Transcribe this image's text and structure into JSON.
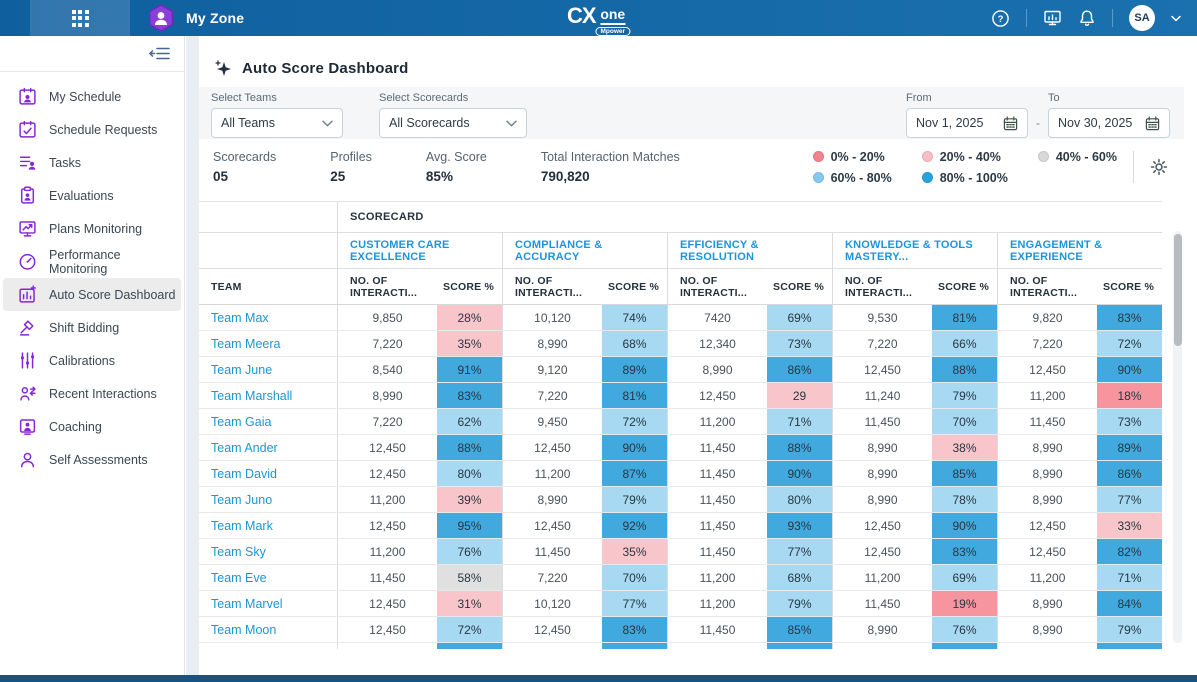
{
  "topbar": {
    "app_title": "My Zone",
    "logo_cx": "CX",
    "logo_one": "one",
    "logo_badge": "Mpower",
    "avatar_initials": "SA"
  },
  "sidebar": {
    "items": [
      {
        "label": "My Schedule",
        "icon": "calendar-user-icon",
        "active": false
      },
      {
        "label": "Schedule Requests",
        "icon": "calendar-check-icon",
        "active": false
      },
      {
        "label": "Tasks",
        "icon": "task-list-icon",
        "active": false
      },
      {
        "label": "Evaluations",
        "icon": "clipboard-user-icon",
        "active": false
      },
      {
        "label": "Plans Monitoring",
        "icon": "monitor-chart-icon",
        "active": false
      },
      {
        "label": "Performance Monitoring",
        "icon": "gauge-icon",
        "active": false
      },
      {
        "label": "Auto Score Dashboard",
        "icon": "dashboard-chart-icon",
        "active": true
      },
      {
        "label": "Shift Bidding",
        "icon": "gavel-icon",
        "active": false
      },
      {
        "label": "Calibrations",
        "icon": "sliders-icon",
        "active": false
      },
      {
        "label": "Recent Interactions",
        "icon": "user-arrows-icon",
        "active": false
      },
      {
        "label": "Coaching",
        "icon": "user-monitor-icon",
        "active": false
      },
      {
        "label": "Self Assessments",
        "icon": "user-icon",
        "active": false
      }
    ]
  },
  "page": {
    "title": "Auto Score Dashboard",
    "filters": {
      "teams_label": "Select Teams",
      "teams_value": "All Teams",
      "scorecards_label": "Select Scorecards",
      "scorecards_value": "All Scorecards",
      "from_label": "From",
      "from_value": "Nov 1, 2025",
      "to_label": "To",
      "to_value": "Nov 30, 2025",
      "range_separator": "-"
    },
    "stats": [
      {
        "label": "Scorecards",
        "value": "05"
      },
      {
        "label": "Profiles",
        "value": "25"
      },
      {
        "label": "Avg. Score",
        "value": "85%"
      },
      {
        "label": "Total Interaction Matches",
        "value": "790,820"
      }
    ],
    "legend": [
      {
        "label": "0% - 20%",
        "color": "#f0838d"
      },
      {
        "label": "20% - 40%",
        "color": "#f6bfc4"
      },
      {
        "label": "40% - 60%",
        "color": "#d8d8d8"
      },
      {
        "label": "60% - 80%",
        "color": "#85caee"
      },
      {
        "label": "80% - 100%",
        "color": "#2aa2dc"
      }
    ]
  },
  "table": {
    "group_header": "SCORECARD",
    "team_header": "TEAM",
    "interactions_header": "NO. OF INTERACTI...",
    "score_header": "SCORE %",
    "scorecards": [
      "CUSTOMER CARE EXCELLENCE",
      "COMPLIANCE & ACCURACY",
      "EFFICIENCY & RESOLUTION",
      "KNOWLEDGE & TOOLS MASTERY...",
      "ENGAGEMENT & EXPERIENCE"
    ],
    "rows": [
      {
        "team": "Team Max",
        "cells": [
          [
            "9,850",
            "28%",
            "20-40"
          ],
          [
            "10,120",
            "74%",
            "60-80"
          ],
          [
            "7420",
            "69%",
            "60-80"
          ],
          [
            "9,530",
            "81%",
            "80-100"
          ],
          [
            "9,820",
            "83%",
            "80-100"
          ]
        ]
      },
      {
        "team": "Team Meera",
        "cells": [
          [
            "7,220",
            "35%",
            "20-40"
          ],
          [
            "8,990",
            "68%",
            "60-80"
          ],
          [
            "12,340",
            "73%",
            "60-80"
          ],
          [
            "7,220",
            "66%",
            "60-80"
          ],
          [
            "7,220",
            "72%",
            "60-80"
          ]
        ]
      },
      {
        "team": "Team June",
        "cells": [
          [
            "8,540",
            "91%",
            "80-100"
          ],
          [
            "9,120",
            "89%",
            "80-100"
          ],
          [
            "8,990",
            "86%",
            "80-100"
          ],
          [
            "12,450",
            "88%",
            "80-100"
          ],
          [
            "12,450",
            "90%",
            "80-100"
          ]
        ]
      },
      {
        "team": "Team Marshall",
        "cells": [
          [
            "8,990",
            "83%",
            "80-100"
          ],
          [
            "7,220",
            "81%",
            "80-100"
          ],
          [
            "12,450",
            "29",
            "20-40"
          ],
          [
            "11,240",
            "79%",
            "60-80"
          ],
          [
            "11,200",
            "18%",
            "0-20"
          ]
        ]
      },
      {
        "team": "Team Gaia",
        "cells": [
          [
            "7,220",
            "62%",
            "60-80"
          ],
          [
            "9,450",
            "72%",
            "60-80"
          ],
          [
            "11,200",
            "71%",
            "60-80"
          ],
          [
            "11,450",
            "70%",
            "60-80"
          ],
          [
            "11,450",
            "73%",
            "60-80"
          ]
        ]
      },
      {
        "team": "Team Ander",
        "cells": [
          [
            "12,450",
            "88%",
            "80-100"
          ],
          [
            "12,450",
            "90%",
            "80-100"
          ],
          [
            "11,450",
            "88%",
            "80-100"
          ],
          [
            "8,990",
            "38%",
            "20-40"
          ],
          [
            "8,990",
            "89%",
            "80-100"
          ]
        ]
      },
      {
        "team": "Team David",
        "cells": [
          [
            "12,450",
            "80%",
            "60-80"
          ],
          [
            "11,200",
            "87%",
            "80-100"
          ],
          [
            "11,450",
            "90%",
            "80-100"
          ],
          [
            "8,990",
            "85%",
            "80-100"
          ],
          [
            "8,990",
            "86%",
            "80-100"
          ]
        ]
      },
      {
        "team": "Team Juno",
        "cells": [
          [
            "11,200",
            "39%",
            "20-40"
          ],
          [
            "8,990",
            "79%",
            "60-80"
          ],
          [
            "11,450",
            "80%",
            "60-80"
          ],
          [
            "8,990",
            "78%",
            "60-80"
          ],
          [
            "8,990",
            "77%",
            "60-80"
          ]
        ]
      },
      {
        "team": "Team Mark",
        "cells": [
          [
            "12,450",
            "95%",
            "80-100"
          ],
          [
            "12,450",
            "92%",
            "80-100"
          ],
          [
            "11,450",
            "93%",
            "80-100"
          ],
          [
            "12,450",
            "90%",
            "80-100"
          ],
          [
            "12,450",
            "33%",
            "20-40"
          ]
        ]
      },
      {
        "team": "Team Sky",
        "cells": [
          [
            "11,200",
            "76%",
            "60-80"
          ],
          [
            "11,450",
            "35%",
            "20-40"
          ],
          [
            "11,450",
            "77%",
            "60-80"
          ],
          [
            "12,450",
            "83%",
            "80-100"
          ],
          [
            "12,450",
            "82%",
            "80-100"
          ]
        ]
      },
      {
        "team": "Team Eve",
        "cells": [
          [
            "11,450",
            "58%",
            "40-60"
          ],
          [
            "7,220",
            "70%",
            "60-80"
          ],
          [
            "11,200",
            "68%",
            "60-80"
          ],
          [
            "11,200",
            "69%",
            "60-80"
          ],
          [
            "11,200",
            "71%",
            "60-80"
          ]
        ]
      },
      {
        "team": "Team Marvel",
        "cells": [
          [
            "12,450",
            "31%",
            "20-40"
          ],
          [
            "10,120",
            "77%",
            "60-80"
          ],
          [
            "11,200",
            "79%",
            "60-80"
          ],
          [
            "11,450",
            "19%",
            "0-20"
          ],
          [
            "8,990",
            "84%",
            "80-100"
          ]
        ]
      },
      {
        "team": "Team Moon",
        "cells": [
          [
            "12,450",
            "72%",
            "60-80"
          ],
          [
            "12,450",
            "83%",
            "80-100"
          ],
          [
            "11,450",
            "85%",
            "80-100"
          ],
          [
            "8,990",
            "76%",
            "60-80"
          ],
          [
            "8,990",
            "79%",
            "60-80"
          ]
        ]
      },
      {
        "team": "",
        "partial": true,
        "cells": [
          [
            "",
            "",
            "80-100"
          ],
          [
            "",
            "",
            "80-100"
          ],
          [
            "",
            "",
            "80-100"
          ],
          [
            "",
            "",
            "80-100"
          ],
          [
            "",
            "",
            "80-100"
          ]
        ]
      }
    ]
  }
}
